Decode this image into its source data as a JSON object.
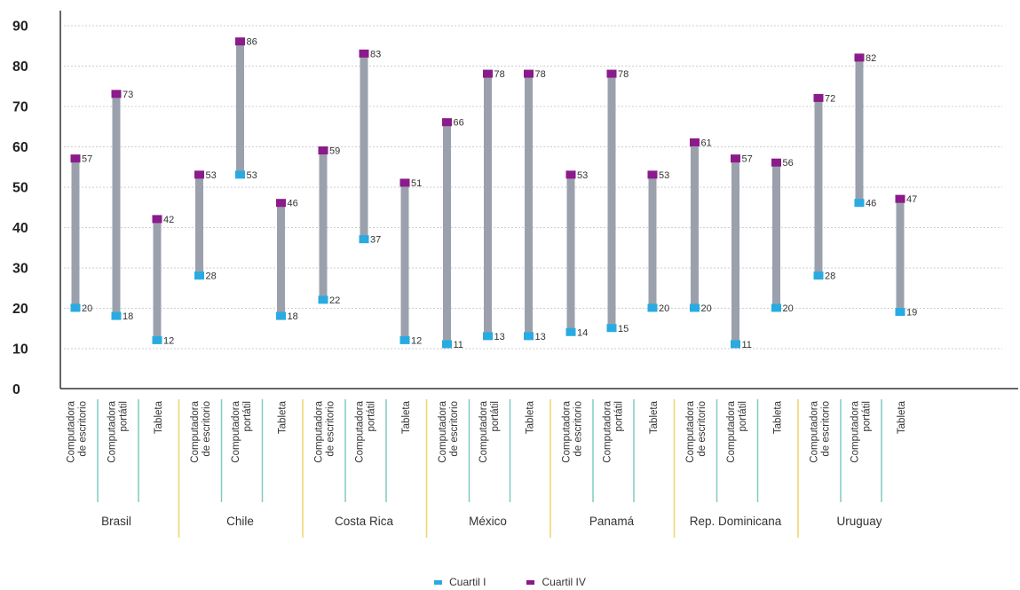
{
  "chart_data": {
    "type": "range-bar",
    "title": "",
    "xlabel": "",
    "ylabel": "",
    "ylim": [
      0,
      90
    ],
    "yticks": [
      0,
      10,
      20,
      30,
      40,
      50,
      60,
      70,
      80,
      90
    ],
    "grid": true,
    "legend_position": "bottom-center",
    "device_labels": [
      [
        "Computadora",
        "de escritorio"
      ],
      [
        "Computadora",
        "portátil"
      ],
      [
        "Tableta"
      ]
    ],
    "series": [
      {
        "name": "Cuartil I",
        "color": "#29abe2"
      },
      {
        "name": "Cuartil IV",
        "color": "#8b1a8b"
      }
    ],
    "groups": [
      {
        "country": "Brasil",
        "q1": [
          20,
          18,
          12
        ],
        "q4": [
          57,
          73,
          42
        ]
      },
      {
        "country": "Chile",
        "q1": [
          28,
          53,
          18
        ],
        "q4": [
          53,
          86,
          46
        ]
      },
      {
        "country": "Costa Rica",
        "q1": [
          22,
          37,
          12
        ],
        "q4": [
          59,
          83,
          51
        ]
      },
      {
        "country": "México",
        "q1": [
          11,
          13,
          13
        ],
        "q4": [
          66,
          78,
          78
        ]
      },
      {
        "country": "Panamá",
        "q1": [
          14,
          15,
          20
        ],
        "q4": [
          53,
          78,
          53
        ]
      },
      {
        "country": "Rep. Dominicana",
        "q1": [
          20,
          11,
          20
        ],
        "q4": [
          61,
          57,
          56
        ]
      },
      {
        "country": "Uruguay",
        "q1": [
          28,
          46,
          19
        ],
        "q4": [
          72,
          82,
          47
        ]
      }
    ],
    "colors": {
      "range_bar": "#9ba0ad",
      "divider_country": "#f0d46a",
      "divider_device": "#7fcbc1",
      "grid": "#cfcfcf",
      "axis": "#333333"
    }
  },
  "legend": [
    {
      "label": "Cuartil I",
      "color": "#29abe2"
    },
    {
      "label": "Cuartil IV",
      "color": "#8b1a8b"
    }
  ]
}
